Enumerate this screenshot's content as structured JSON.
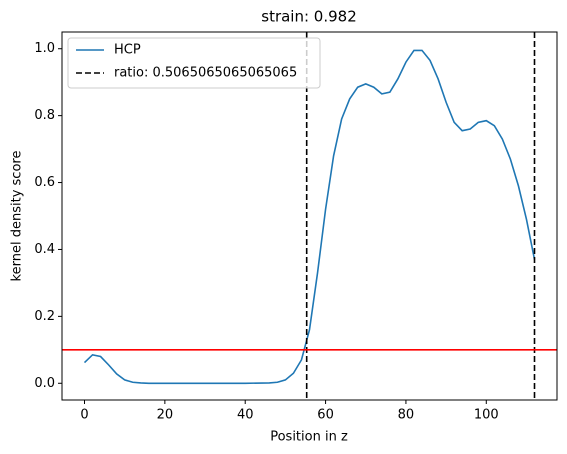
{
  "chart_data": {
    "type": "line",
    "title": "strain: 0.982",
    "xlabel": "Position in z",
    "ylabel": "kernel density score",
    "series": [
      {
        "name": "HCP",
        "color": "#1f77b4",
        "x": [
          0,
          2,
          4,
          6,
          8,
          10,
          12,
          14,
          16,
          20,
          30,
          40,
          46,
          48,
          50,
          52,
          54,
          56,
          58,
          60,
          62,
          64,
          66,
          68,
          70,
          72,
          74,
          76,
          78,
          80,
          82,
          84,
          86,
          88,
          90,
          92,
          94,
          96,
          98,
          100,
          102,
          104,
          106,
          108,
          110,
          112
        ],
        "values": [
          0.062,
          0.085,
          0.08,
          0.055,
          0.028,
          0.01,
          0.003,
          0.001,
          0,
          0,
          0,
          0,
          0.001,
          0.003,
          0.01,
          0.03,
          0.07,
          0.16,
          0.33,
          0.52,
          0.68,
          0.79,
          0.85,
          0.885,
          0.895,
          0.885,
          0.865,
          0.87,
          0.91,
          0.96,
          0.995,
          0.995,
          0.965,
          0.91,
          0.84,
          0.78,
          0.755,
          0.76,
          0.78,
          0.785,
          0.77,
          0.73,
          0.67,
          0.59,
          0.49,
          0.37
        ]
      }
    ],
    "vlines": {
      "name": "ratio: 0.5065065065065065",
      "color": "#000000",
      "x": [
        55.3,
        112
      ]
    },
    "hline": {
      "color": "#ff0000",
      "y": 0.1
    },
    "xlim": [
      -5.6,
      117.6
    ],
    "ylim": [
      -0.05,
      1.05
    ],
    "xticks": [
      0,
      20,
      40,
      60,
      80,
      100
    ],
    "yticks": [
      {
        "value": 0,
        "label": "0.0"
      },
      {
        "value": 0.2,
        "label": "0.2"
      },
      {
        "value": 0.4,
        "label": "0.4"
      },
      {
        "value": 0.6,
        "label": "0.6"
      },
      {
        "value": 0.8,
        "label": "0.8"
      },
      {
        "value": 1,
        "label": "1.0"
      }
    ],
    "legend": "upper left"
  }
}
